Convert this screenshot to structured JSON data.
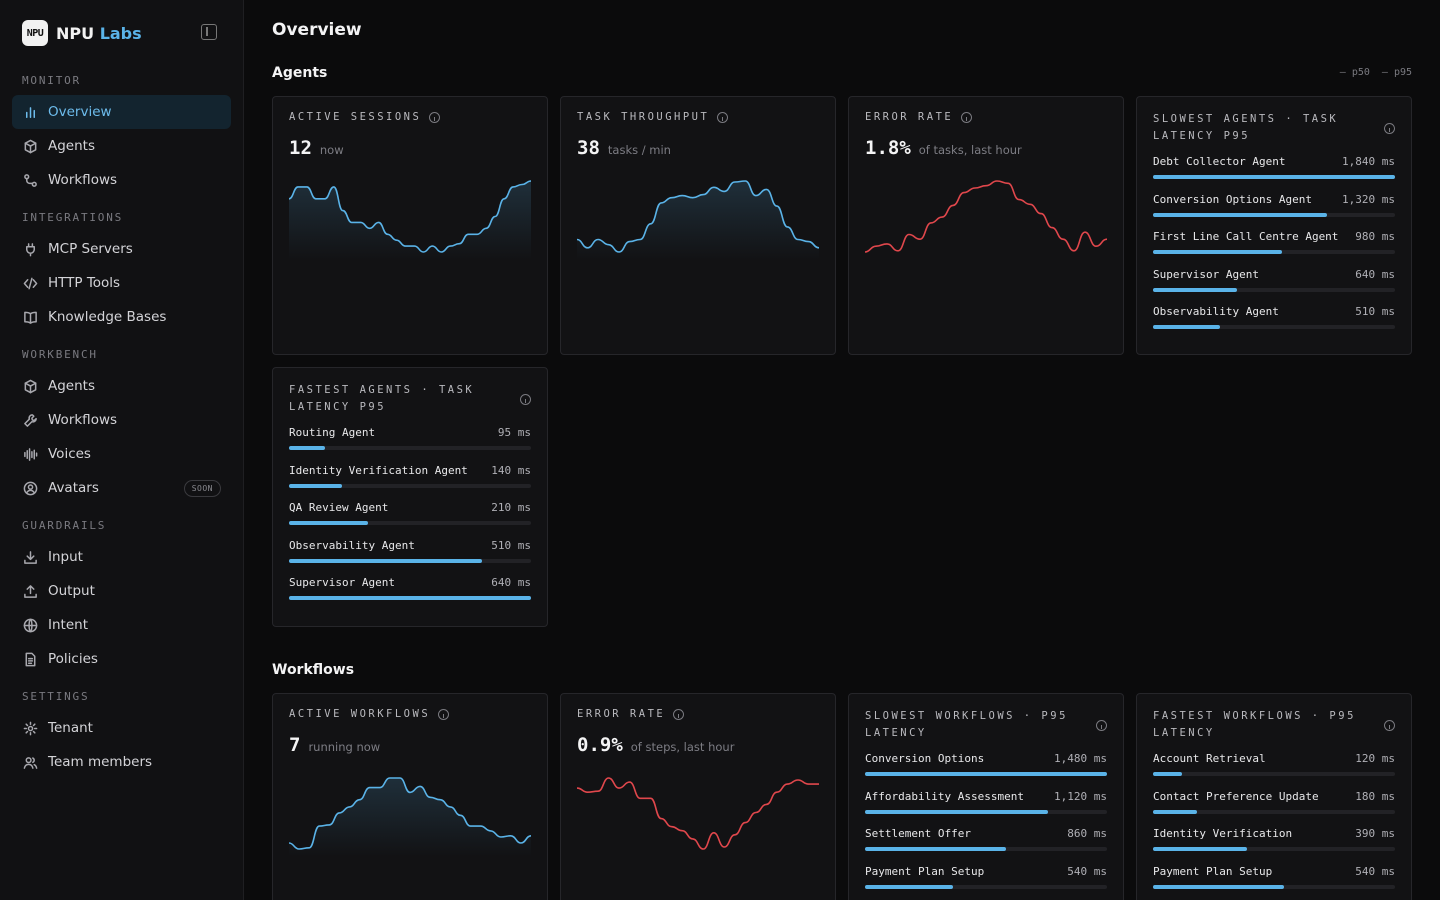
{
  "brand": {
    "logo": "NPU",
    "name": "NPU",
    "name_accent": "Labs"
  },
  "sidebar": {
    "groups": [
      {
        "label": "MONITOR",
        "items": [
          {
            "label": "Overview",
            "icon": "bar-chart-icon",
            "active": true
          },
          {
            "label": "Agents",
            "icon": "cube-icon"
          },
          {
            "label": "Workflows",
            "icon": "workflow-icon"
          }
        ]
      },
      {
        "label": "INTEGRATIONS",
        "items": [
          {
            "label": "MCP Servers",
            "icon": "plug-icon"
          },
          {
            "label": "HTTP Tools",
            "icon": "code-icon"
          },
          {
            "label": "Knowledge Bases",
            "icon": "book-icon"
          }
        ]
      },
      {
        "label": "WORKBENCH",
        "items": [
          {
            "label": "Agents",
            "icon": "bot-icon"
          },
          {
            "label": "Workflows",
            "icon": "wrench-icon"
          },
          {
            "label": "Voices",
            "icon": "waveform-icon"
          },
          {
            "label": "Avatars",
            "icon": "user-circle-icon",
            "badge": "SOON"
          }
        ]
      },
      {
        "label": "GUARDRAILS",
        "items": [
          {
            "label": "Input",
            "icon": "download-icon"
          },
          {
            "label": "Output",
            "icon": "upload-icon"
          },
          {
            "label": "Intent",
            "icon": "globe-icon"
          },
          {
            "label": "Policies",
            "icon": "document-icon"
          }
        ]
      },
      {
        "label": "SETTINGS",
        "items": [
          {
            "label": "Tenant",
            "icon": "gear-icon"
          },
          {
            "label": "Team members",
            "icon": "users-icon"
          }
        ]
      }
    ]
  },
  "page": {
    "title": "Overview"
  },
  "legend": {
    "p50": "p50",
    "p95": "p95"
  },
  "agents": {
    "title": "Agents",
    "active_sessions": {
      "label": "ACTIVE SESSIONS",
      "value": "12",
      "unit": "now",
      "color": "#5ab3e8",
      "series": [
        5,
        6,
        6,
        5,
        5,
        6,
        4,
        3,
        3,
        2.5,
        3,
        2,
        1.5,
        1,
        1,
        0.5,
        1,
        0.5,
        1,
        1.2,
        2,
        2,
        2.5,
        3.5,
        5,
        6,
        6.2,
        6.5
      ]
    },
    "task_throughput": {
      "label": "TASK THROUGHPUT",
      "value": "38",
      "unit": "tasks / min",
      "color": "#5ab3e8",
      "series": [
        2,
        1.2,
        2,
        1.5,
        0.8,
        1.8,
        2,
        3.5,
        5.5,
        6,
        6.2,
        6,
        6.3,
        7,
        6.6,
        7.5,
        7.6,
        6.2,
        6.8,
        5.2,
        3.2,
        2,
        1.8,
        1.2
      ]
    },
    "error_rate": {
      "label": "ERROR RATE",
      "value": "1.8%",
      "unit": "of tasks, last hour",
      "color": "#e0474c",
      "series": [
        1.5,
        2,
        2.2,
        1.6,
        3,
        2.6,
        4,
        4.5,
        5.5,
        6.6,
        7,
        7.2,
        7.6,
        7.4,
        6,
        5.6,
        4.8,
        3.6,
        2.6,
        1.6,
        3.2,
        2,
        2.6
      ]
    },
    "slowest": {
      "label": "SLOWEST AGENTS · TASK LATENCY P95",
      "max": 1840,
      "rows": [
        {
          "name": "Debt Collector Agent",
          "value": 1840,
          "display": "1,840 ms"
        },
        {
          "name": "Conversion Options Agent",
          "value": 1320,
          "display": "1,320 ms"
        },
        {
          "name": "First Line Call Centre Agent",
          "value": 980,
          "display": "980 ms"
        },
        {
          "name": "Supervisor Agent",
          "value": 640,
          "display": "640 ms"
        },
        {
          "name": "Observability Agent",
          "value": 510,
          "display": "510 ms"
        }
      ]
    },
    "fastest": {
      "label": "FASTEST AGENTS · TASK LATENCY P95",
      "max": 640,
      "rows": [
        {
          "name": "Routing Agent",
          "value": 95,
          "display": "95 ms"
        },
        {
          "name": "Identity Verification Agent",
          "value": 140,
          "display": "140 ms"
        },
        {
          "name": "QA Review Agent",
          "value": 210,
          "display": "210 ms"
        },
        {
          "name": "Observability Agent",
          "value": 510,
          "display": "510 ms"
        },
        {
          "name": "Supervisor Agent",
          "value": 640,
          "display": "640 ms"
        }
      ]
    }
  },
  "workflows": {
    "title": "Workflows",
    "active_workflows": {
      "label": "ACTIVE WORKFLOWS",
      "value": "7",
      "unit": "running now",
      "color": "#5ab3e8",
      "series": [
        1,
        0.5,
        0.6,
        2.4,
        2.5,
        3.5,
        4,
        4.6,
        5.6,
        5.6,
        6.4,
        6.4,
        5.2,
        5.7,
        4.8,
        4.6,
        4,
        3.3,
        2.4,
        2.4,
        2,
        1.5,
        1.6,
        1,
        1.6
      ]
    },
    "error_rate": {
      "label": "ERROR RATE",
      "value": "0.9%",
      "unit": "of steps, last hour",
      "color": "#e0474c",
      "series": [
        6.6,
        6.2,
        6.3,
        7.6,
        6.6,
        7.2,
        5.6,
        5.6,
        3.6,
        2.8,
        2.4,
        1.6,
        0.6,
        2.2,
        0.8,
        2,
        3.2,
        4.2,
        5,
        6.2,
        7,
        7.4,
        7,
        7
      ]
    },
    "slowest": {
      "label": "SLOWEST WORKFLOWS · P95 LATENCY",
      "max": 1480,
      "rows": [
        {
          "name": "Conversion Options",
          "value": 1480,
          "display": "1,480 ms"
        },
        {
          "name": "Affordability Assessment",
          "value": 1120,
          "display": "1,120 ms"
        },
        {
          "name": "Settlement Offer",
          "value": 860,
          "display": "860 ms"
        },
        {
          "name": "Payment Plan Setup",
          "value": 540,
          "display": "540 ms"
        }
      ]
    },
    "fastest": {
      "label": "FASTEST WORKFLOWS · P95 LATENCY",
      "max": 1000,
      "rows": [
        {
          "name": "Account Retrieval",
          "value": 120,
          "display": "120 ms"
        },
        {
          "name": "Contact Preference Update",
          "value": 180,
          "display": "180 ms"
        },
        {
          "name": "Identity Verification",
          "value": 390,
          "display": "390 ms"
        },
        {
          "name": "Payment Plan Setup",
          "value": 540,
          "display": "540 ms"
        }
      ]
    }
  }
}
